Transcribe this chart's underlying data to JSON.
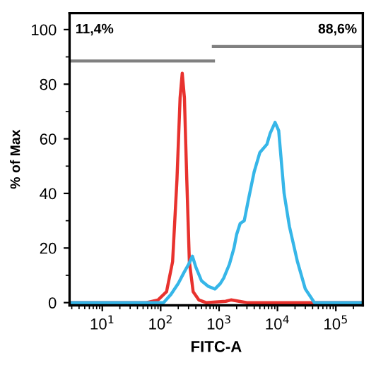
{
  "chart_data": {
    "type": "line",
    "xlabel": "FITC-A",
    "ylabel": "% of Max",
    "log": "x",
    "xlim": [
      2.75,
      290000
    ],
    "ylim": [
      -1,
      106
    ],
    "xticks": [
      {
        "value": 10,
        "label": "10$^{1}$"
      },
      {
        "value": 100,
        "label": "10$^{2}$"
      },
      {
        "value": 1000,
        "label": "10$^{3}$"
      },
      {
        "value": 10000,
        "label": "10$^{4}$"
      },
      {
        "value": 100000,
        "label": "10$^{5}$"
      }
    ],
    "yticks": [
      0,
      20,
      40,
      60,
      80,
      100
    ],
    "grid": false,
    "legend": false,
    "marker": "none",
    "line_style": "solid",
    "series": [
      {
        "color": "#e8322e",
        "x": [
          2.75,
          57,
          90,
          126,
          160,
          190,
          215,
          234,
          255,
          280,
          310,
          360,
          450,
          600,
          1300,
          1600,
          2200,
          3000,
          290000
        ],
        "values": [
          0,
          0,
          1,
          4,
          15,
          45,
          75,
          84,
          75,
          45,
          15,
          4,
          1,
          0,
          0.5,
          1,
          0.5,
          0,
          0
        ]
      },
      {
        "color": "#36b6e8",
        "x": [
          2.75,
          112,
          150,
          200,
          250,
          300,
          350,
          400,
          500,
          650,
          850,
          1050,
          1200,
          1500,
          1800,
          2000,
          2300,
          2700,
          3200,
          4000,
          5000,
          6600,
          7500,
          9100,
          10500,
          13000,
          16000,
          22000,
          30000,
          43000,
          290000
        ],
        "values": [
          0,
          0,
          3,
          7,
          11,
          14,
          17,
          13,
          8,
          6,
          5,
          7,
          9,
          14,
          20,
          25,
          29,
          30,
          38,
          48,
          55,
          58,
          62,
          66,
          63,
          40,
          28,
          15,
          5,
          0,
          0
        ]
      },
      {
        "color": "#808080",
        "x": [
          2.75,
          800
        ],
        "values": [
          88.5,
          88.5
        ]
      },
      {
        "color": "#808080",
        "x": [
          800,
          290000
        ],
        "values": [
          93.8,
          93.8
        ]
      }
    ],
    "annotations": [
      "11,4%",
      "88,6%"
    ]
  }
}
